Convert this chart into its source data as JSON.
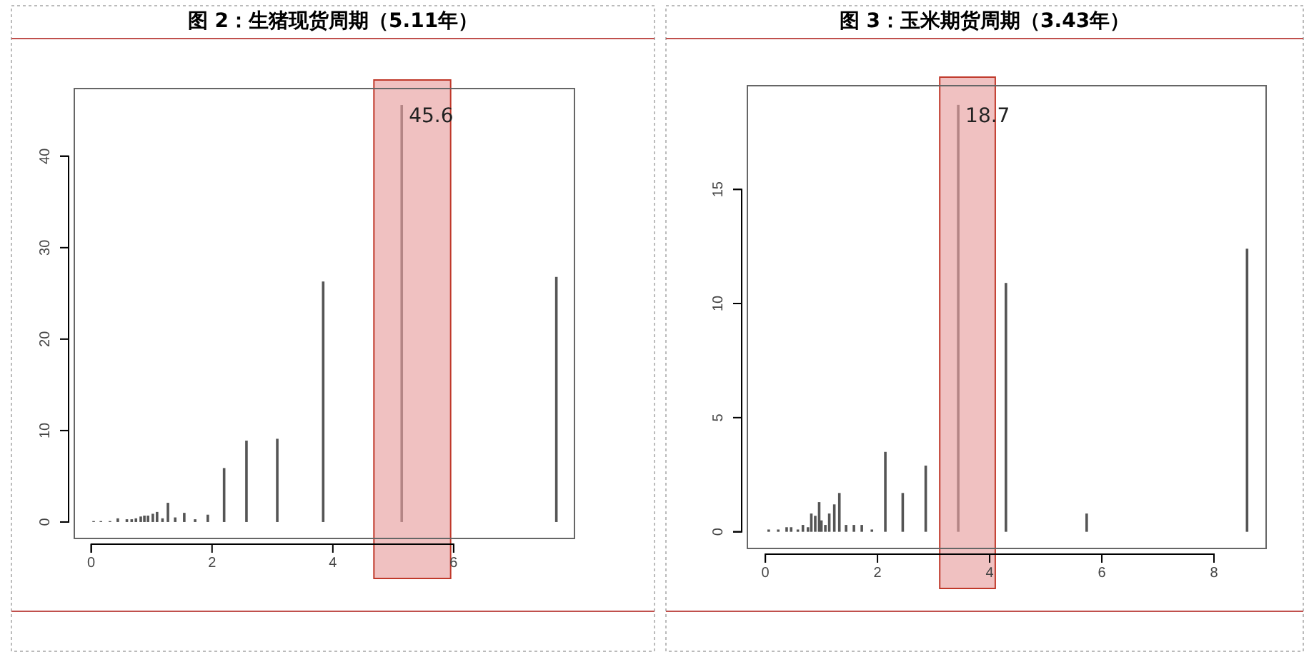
{
  "chart_data": [
    {
      "type": "bar",
      "title": "图 2：生猪现货周期（5.11年）",
      "x": [
        0.04,
        0.16,
        0.31,
        0.44,
        0.59,
        0.67,
        0.74,
        0.82,
        0.88,
        0.94,
        1.02,
        1.09,
        1.18,
        1.27,
        1.39,
        1.54,
        1.72,
        1.93,
        2.2,
        2.57,
        3.08,
        3.84,
        5.14,
        7.7
      ],
      "values": [
        0.1,
        0.1,
        0.1,
        0.4,
        0.3,
        0.3,
        0.4,
        0.6,
        0.7,
        0.7,
        0.9,
        1.1,
        0.4,
        2.1,
        0.5,
        1.0,
        0.3,
        0.8,
        5.9,
        8.9,
        9.1,
        26.3,
        45.6,
        26.8
      ],
      "color": "#555555",
      "xlim": [
        -0.28,
        8.0
      ],
      "xticks": [
        0,
        2,
        4,
        6
      ],
      "ylim": [
        -1.8,
        47.4
      ],
      "yticks": [
        0,
        10,
        20,
        30,
        40
      ],
      "bands": [
        {
          "axis": "x",
          "from": 4.68,
          "to": 5.95,
          "color": "#e8a0a0"
        }
      ],
      "annotations": [
        {
          "text": "45.6",
          "x": 5.14,
          "y": 45.6
        }
      ],
      "grid": false
    },
    {
      "type": "bar",
      "title": "图 3：玉米期货周期（3.43年）",
      "x": [
        0.06,
        0.23,
        0.38,
        0.46,
        0.58,
        0.67,
        0.76,
        0.82,
        0.89,
        0.96,
        1.0,
        1.07,
        1.14,
        1.23,
        1.32,
        1.44,
        1.58,
        1.72,
        1.9,
        2.14,
        2.45,
        2.86,
        3.44,
        4.29,
        5.73,
        8.59
      ],
      "values": [
        0.1,
        0.1,
        0.2,
        0.2,
        0.1,
        0.3,
        0.2,
        0.8,
        0.7,
        1.3,
        0.5,
        0.3,
        0.8,
        1.2,
        1.7,
        0.3,
        0.3,
        0.3,
        0.1,
        3.5,
        1.7,
        2.9,
        18.7,
        10.9,
        0.8,
        12.4
      ],
      "color": "#555555",
      "xlim": [
        -0.32,
        8.93
      ],
      "xticks": [
        0,
        2,
        4,
        6,
        8
      ],
      "ylim": [
        -0.73,
        19.54
      ],
      "yticks": [
        0,
        5,
        10,
        15
      ],
      "bands": [
        {
          "axis": "x",
          "from": 3.11,
          "to": 4.1,
          "color": "#e8a0a0"
        }
      ],
      "annotations": [
        {
          "text": "18.7",
          "x": 3.44,
          "y": 18.7
        }
      ],
      "grid": false
    }
  ]
}
